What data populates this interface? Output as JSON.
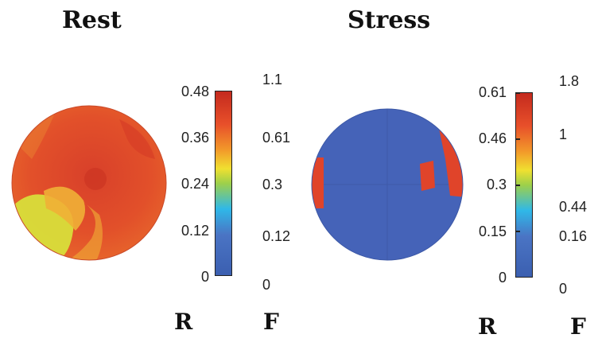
{
  "panels": {
    "rest": {
      "title": "Rest",
      "r_ticks": [
        "0.48",
        "0.36",
        "0.24",
        "0.12",
        "0"
      ],
      "f_ticks": [
        "1.1",
        "0.61",
        "0.3",
        "0.12",
        "0"
      ],
      "r_label": "R",
      "f_label": "F"
    },
    "stress": {
      "title": "Stress",
      "r_ticks": [
        "0.61",
        "0.46",
        "0.3",
        "0.15",
        "0"
      ],
      "f_ticks": [
        "1.8",
        "1",
        "0.44",
        "0.16",
        "0"
      ],
      "r_label": "R",
      "f_label": "F"
    }
  },
  "colors": {
    "map_red": "#e0412a",
    "map_orange": "#e8602a",
    "map_yellow": "#d8e03a",
    "map_blue": "#4563b8"
  }
}
